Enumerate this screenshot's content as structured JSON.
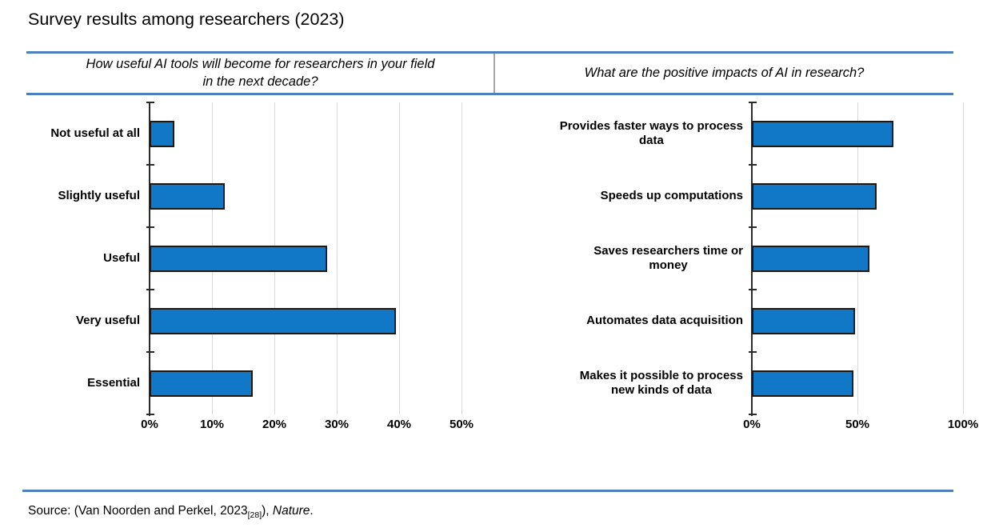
{
  "title": "Survey results among researchers (2023)",
  "panels": {
    "left_header": "How useful AI tools will become for researchers in your field\nin the next decade?",
    "right_header": "What are the positive impacts of AI in research?"
  },
  "chart_data": [
    {
      "type": "bar",
      "orientation": "horizontal",
      "title": "How useful AI tools will become for researchers in your field in the next decade?",
      "categories": [
        "Not useful at all",
        "Slightly useful",
        "Useful",
        "Very useful",
        "Essential"
      ],
      "values": [
        4,
        12,
        28.5,
        39.5,
        16.5
      ],
      "unit": "%",
      "xlabel": "",
      "ylabel": "",
      "xlim": [
        0,
        53
      ],
      "xticks": [
        "0%",
        "10%",
        "20%",
        "30%",
        "40%",
        "50%"
      ],
      "grid": true,
      "legend": false
    },
    {
      "type": "bar",
      "orientation": "horizontal",
      "title": "What are the positive impacts of AI in research?",
      "categories": [
        "Provides faster ways to process\ndata",
        "Speeds up computations",
        "Saves researchers time or\nmoney",
        "Automates data acquisition",
        "Makes it possible to process\nnew kinds of data"
      ],
      "values": [
        67,
        59,
        55.5,
        49,
        48
      ],
      "unit": "%",
      "xlabel": "",
      "ylabel": "",
      "xlim": [
        0,
        100
      ],
      "xticks": [
        "0%",
        "50%",
        "100%"
      ],
      "grid": true,
      "legend": false
    }
  ],
  "source": {
    "prefix": "Source: (Van Noorden and Perkel, 2023",
    "subscript": "[28]",
    "after_subscript": "), ",
    "journal": "Nature",
    "suffix": "."
  },
  "colors": {
    "bar_fill": "#1178c8",
    "bar_border": "#1a1a1a",
    "rule_blue": "#4d7ebd",
    "gridline": "#d9d9d9",
    "axis": "#2a2a2a",
    "divider": "#a6a6a6",
    "text": "#000000"
  }
}
